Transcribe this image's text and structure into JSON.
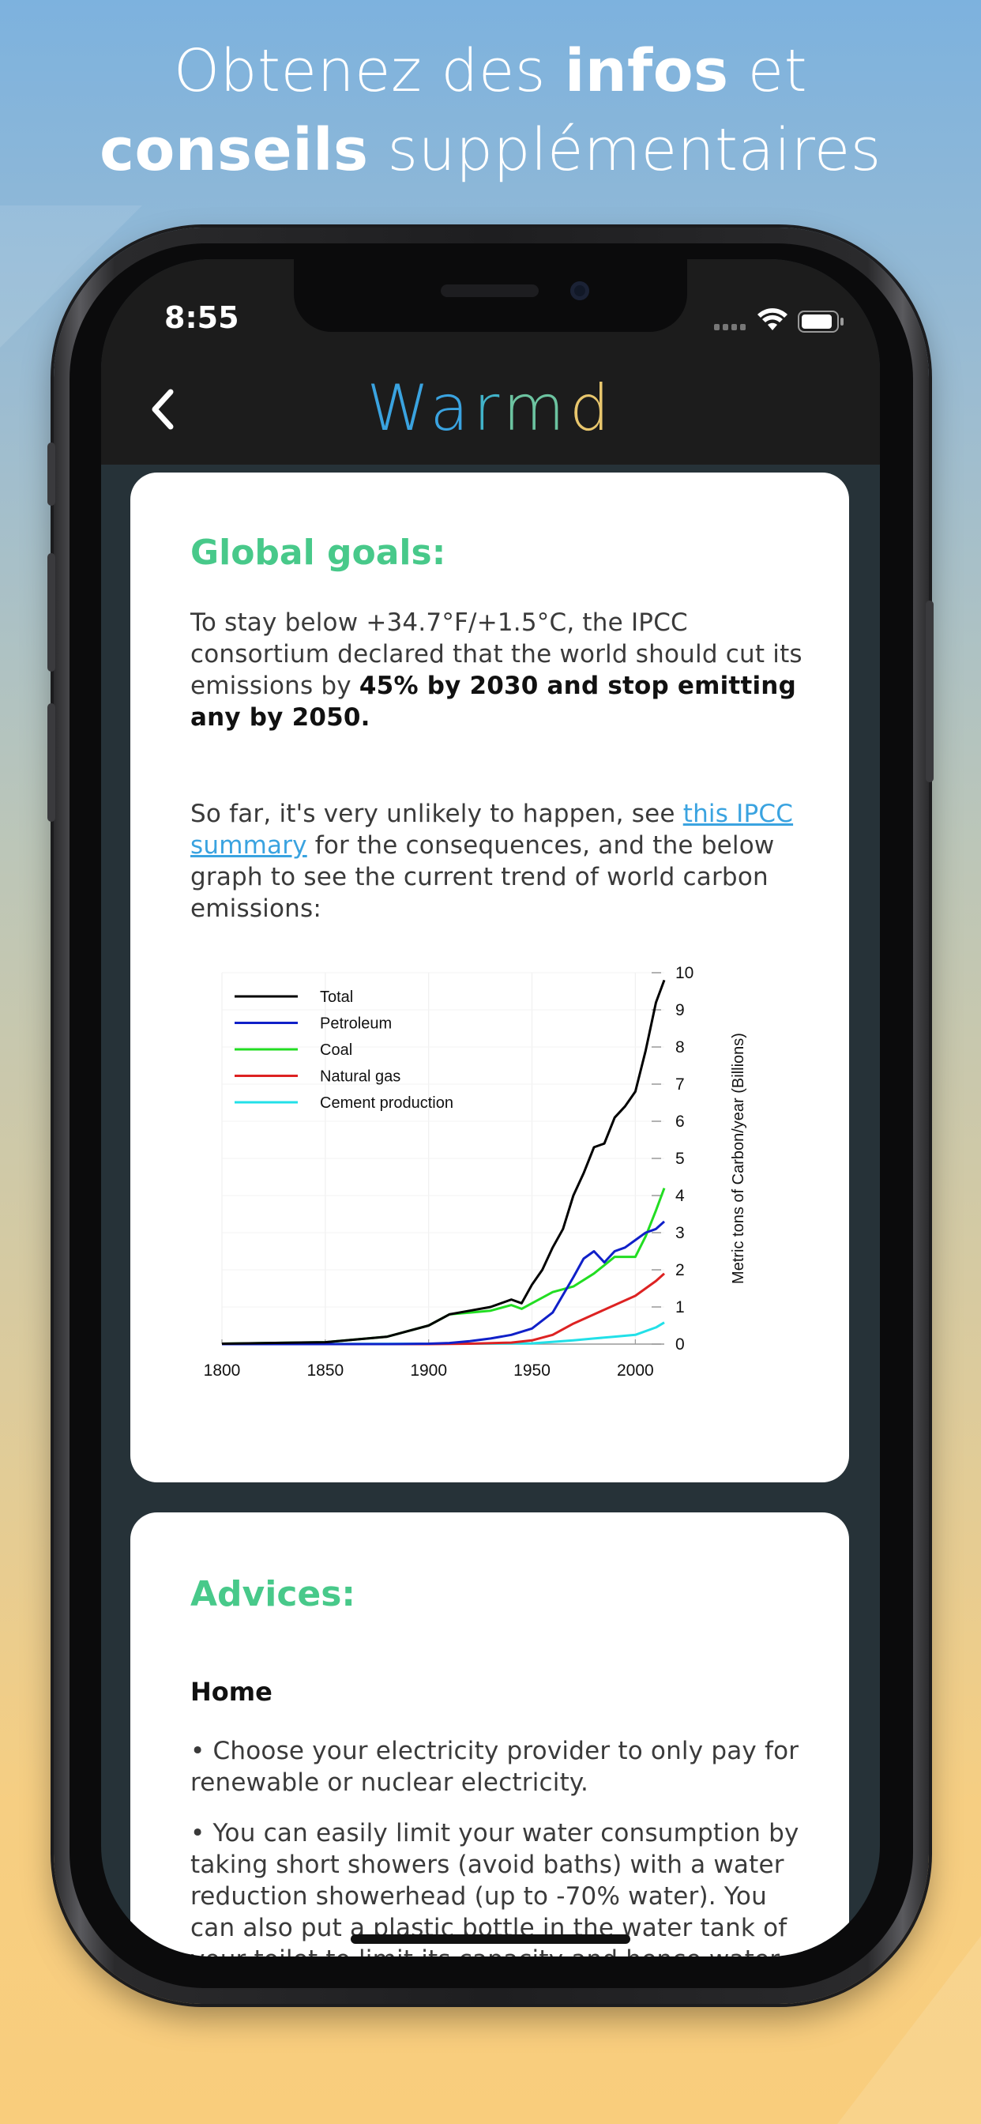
{
  "hero": {
    "line1_pre": "Obtenez des ",
    "line1_bold": "infos",
    "line1_post": " et",
    "line2_bold": "conseils",
    "line2_post": " supplémentaires"
  },
  "status_bar": {
    "time": "8:55"
  },
  "nav": {
    "back_icon": "chevron-left-icon",
    "brand_letters": [
      {
        "char": "W",
        "color": "#3aa3e0"
      },
      {
        "char": "a",
        "color": "#3aa3e0"
      },
      {
        "char": "r",
        "color": "#41b3c9"
      },
      {
        "char": "m",
        "color": "#6cc3a0"
      },
      {
        "char": "d",
        "color": "#e8c66d"
      }
    ]
  },
  "global_goals": {
    "title": "Global goals:",
    "p1_text": "To stay below +34.7°F/+1.5°C, the IPCC consortium declared that the world should cut its emissions by ",
    "p1_bold": "45% by 2030 and stop emitting any by 2050.",
    "p2_pre": "So far, it's very unlikely to happen, see ",
    "p2_link": "this IPCC summary",
    "p2_post": " for the consequences, and the below graph to see the current trend of world carbon emissions:"
  },
  "chart_data": {
    "type": "line",
    "title": "",
    "xlabel": "",
    "ylabel": "Metric tons of Carbon/year (Billions)",
    "xlim": [
      1800,
      2014
    ],
    "ylim": [
      0,
      10
    ],
    "xticks": [
      1800,
      1850,
      1900,
      1950,
      2000
    ],
    "yticks": [
      0,
      1,
      2,
      3,
      4,
      5,
      6,
      7,
      8,
      9,
      10
    ],
    "legend_position": "top-left",
    "series": [
      {
        "name": "Total",
        "color": "#000000",
        "x": [
          1800,
          1850,
          1880,
          1900,
          1910,
          1920,
          1930,
          1940,
          1945,
          1950,
          1955,
          1960,
          1965,
          1970,
          1975,
          1980,
          1985,
          1990,
          1995,
          2000,
          2005,
          2010,
          2014
        ],
        "values": [
          0.01,
          0.05,
          0.2,
          0.5,
          0.8,
          0.9,
          1.0,
          1.2,
          1.1,
          1.6,
          2.0,
          2.6,
          3.1,
          4.0,
          4.6,
          5.3,
          5.4,
          6.1,
          6.4,
          6.8,
          7.9,
          9.2,
          9.8
        ]
      },
      {
        "name": "Petroleum",
        "color": "#1020c8",
        "x": [
          1800,
          1880,
          1900,
          1910,
          1920,
          1930,
          1940,
          1950,
          1960,
          1970,
          1975,
          1980,
          1985,
          1990,
          1995,
          2000,
          2005,
          2010,
          2014
        ],
        "values": [
          0,
          0,
          0.01,
          0.03,
          0.08,
          0.15,
          0.25,
          0.42,
          0.85,
          1.8,
          2.3,
          2.5,
          2.2,
          2.5,
          2.6,
          2.8,
          3.0,
          3.1,
          3.3
        ]
      },
      {
        "name": "Coal",
        "color": "#22dd22",
        "x": [
          1800,
          1850,
          1880,
          1900,
          1910,
          1920,
          1930,
          1940,
          1945,
          1950,
          1960,
          1970,
          1980,
          1990,
          2000,
          2005,
          2010,
          2014
        ],
        "values": [
          0.01,
          0.05,
          0.2,
          0.5,
          0.8,
          0.85,
          0.9,
          1.05,
          0.95,
          1.1,
          1.4,
          1.55,
          1.9,
          2.35,
          2.35,
          2.9,
          3.6,
          4.2
        ]
      },
      {
        "name": "Natural gas",
        "color": "#dd2222",
        "x": [
          1800,
          1900,
          1920,
          1940,
          1950,
          1960,
          1970,
          1980,
          1990,
          2000,
          2010,
          2014
        ],
        "values": [
          0,
          0,
          0.01,
          0.04,
          0.1,
          0.25,
          0.55,
          0.8,
          1.05,
          1.3,
          1.7,
          1.9
        ]
      },
      {
        "name": "Cement production",
        "color": "#22e0e8",
        "x": [
          1800,
          1920,
          1950,
          1970,
          1980,
          1990,
          2000,
          2010,
          2014
        ],
        "values": [
          0,
          0.01,
          0.02,
          0.1,
          0.15,
          0.2,
          0.25,
          0.45,
          0.58
        ]
      }
    ]
  },
  "advices": {
    "title": "Advices:",
    "home_heading": "Home",
    "bullet1": "• Choose your electricity provider to only pay for renewable or nuclear electricity.",
    "bullet2": "• You can easily limit your water consumption by taking short showers (avoid baths) with a water reduction showerhead (up to -70% water). You can also put a plastic bottle in the water tank of your toilet to limit its capacity and hence water"
  }
}
